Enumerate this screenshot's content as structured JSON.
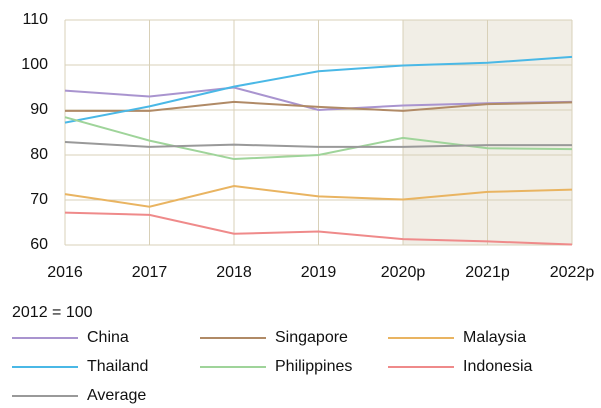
{
  "chart_data": {
    "type": "line",
    "note": "2012 = 100",
    "categories": [
      "2016",
      "2017",
      "2018",
      "2019",
      "2020p",
      "2021p",
      "2022p"
    ],
    "forecast_from": "2020p",
    "ylim": [
      60,
      110
    ],
    "yticks": [
      60,
      70,
      80,
      90,
      100,
      110
    ],
    "grid": true,
    "series": [
      {
        "name": "China",
        "color": "#a994cf",
        "values": [
          94.3,
          93,
          95,
          90,
          91,
          91.5,
          91.8
        ]
      },
      {
        "name": "Singapore",
        "color": "#b08a66",
        "values": [
          89.8,
          89.8,
          91.8,
          90.7,
          89.8,
          91.3,
          91.7
        ]
      },
      {
        "name": "Malaysia",
        "color": "#e9b461",
        "values": [
          71.3,
          68.5,
          73.1,
          70.8,
          70.1,
          71.8,
          72.3
        ]
      },
      {
        "name": "Thailand",
        "color": "#4ab8e6",
        "values": [
          87.2,
          90.8,
          95.2,
          98.6,
          99.9,
          100.5,
          101.8
        ]
      },
      {
        "name": "Philippines",
        "color": "#9fd49a",
        "values": [
          88.4,
          83.2,
          79.1,
          80.0,
          83.8,
          81.5,
          81.3
        ]
      },
      {
        "name": "Indonesia",
        "color": "#ef8a8a",
        "values": [
          67.2,
          66.7,
          62.5,
          63.0,
          61.3,
          60.8,
          60.1
        ]
      },
      {
        "name": "Average",
        "color": "#999999",
        "values": [
          82.9,
          81.8,
          82.3,
          81.8,
          81.8,
          82.2,
          82.2
        ]
      }
    ]
  }
}
